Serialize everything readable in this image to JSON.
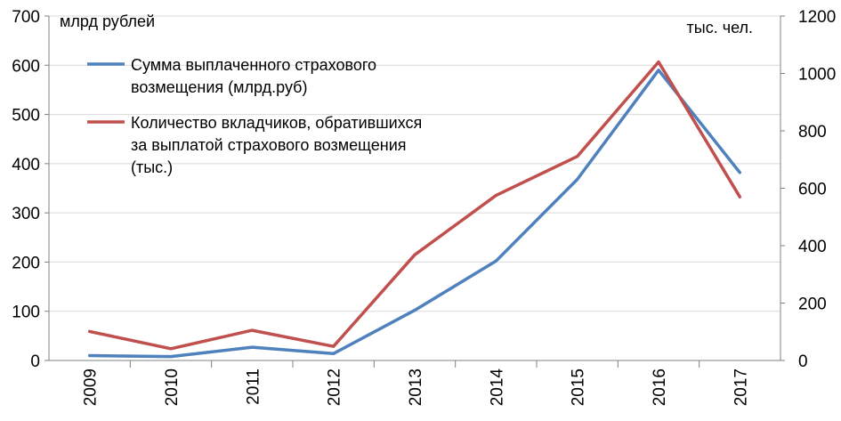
{
  "chart_data": {
    "type": "line",
    "x": [
      "2009",
      "2010",
      "2011",
      "2012",
      "2013",
      "2014",
      "2015",
      "2016",
      "2017"
    ],
    "series": [
      {
        "name": "Сумма выплаченного страхового возмещения (млрд.руб)",
        "axis": "left",
        "color": "#4f81bd",
        "values": [
          10,
          8,
          27,
          14,
          102,
          202,
          368,
          590,
          382
        ]
      },
      {
        "name": "Количество вкладчиков, обратившихся за выплатой страхового возмещения (тыс.)",
        "axis": "right",
        "color": "#c0504d",
        "values": [
          101,
          41,
          105,
          49,
          368,
          575,
          711,
          1040,
          570
        ]
      }
    ],
    "y_left": {
      "unit_label": "млрд  рублей",
      "ylim": [
        0,
        700
      ],
      "ticks": [
        "0",
        "100",
        "200",
        "300",
        "400",
        "500",
        "600",
        "700"
      ]
    },
    "y_right": {
      "unit_label": "тыс. чел.",
      "ylim": [
        0,
        1200
      ],
      "ticks": [
        "0",
        "200",
        "400",
        "600",
        "800",
        "1000",
        "1200"
      ]
    },
    "legend": {
      "placement": "top-left",
      "entries": [
        [
          "Сумма выплаченного страхового",
          "возмещения (млрд.руб)"
        ],
        [
          "Количество вкладчиков, обратившихся",
          "за выплатой страхового возмещения",
          "(тыс.)"
        ]
      ]
    },
    "grid": true
  }
}
